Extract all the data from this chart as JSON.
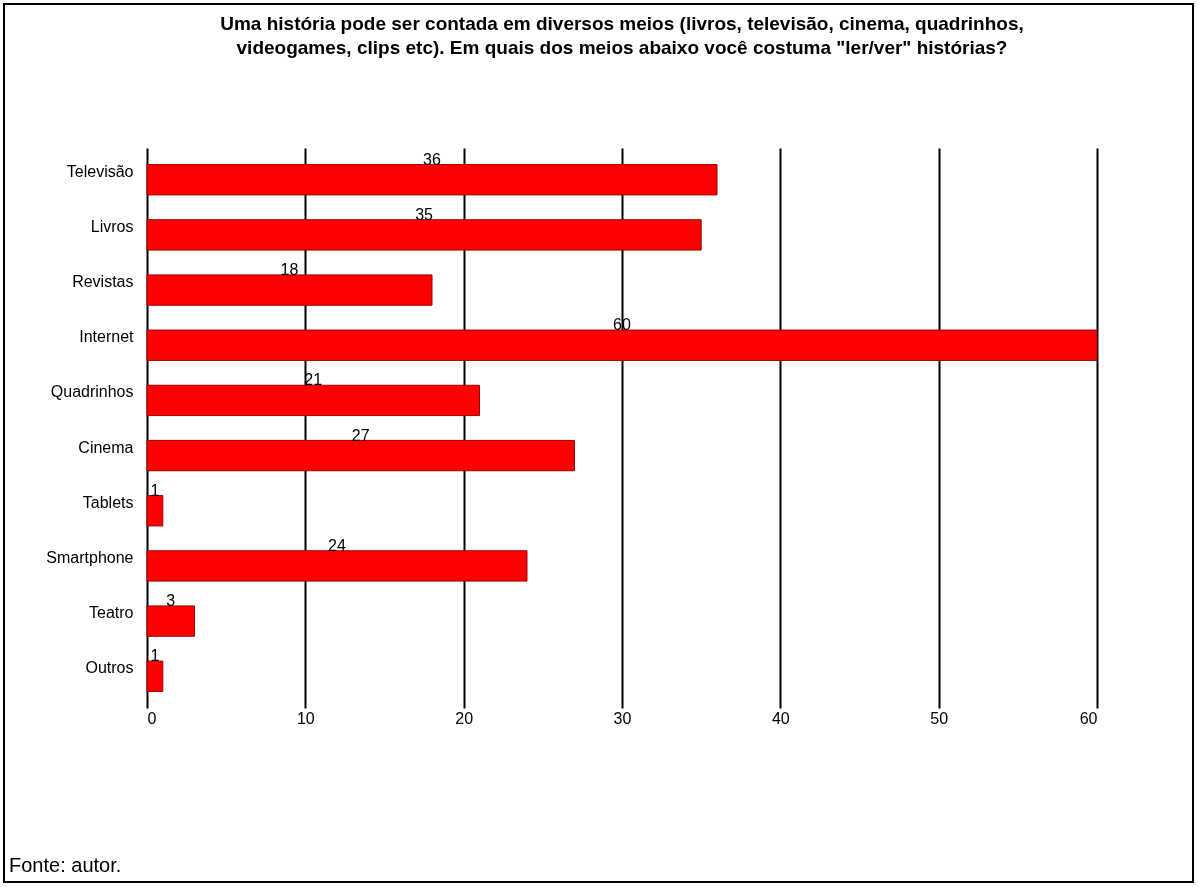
{
  "chart_data": {
    "type": "bar",
    "orientation": "horizontal",
    "title": "Uma história pode ser contada em diversos meios (livros, televisão, cinema, quadrinhos, videogames, clips etc). Em quais dos meios abaixo você costuma \"ler/ver\" histórias?",
    "categories": [
      "Televisão",
      "Livros",
      "Revistas",
      "Internet",
      "Quadrinhos",
      "Cinema",
      "Tablets",
      "Smartphone",
      "Teatro",
      "Outros"
    ],
    "values": [
      36,
      35,
      18,
      60,
      21,
      27,
      1,
      24,
      3,
      1
    ],
    "color": "#ff0000",
    "xlim": [
      0,
      60
    ],
    "xticks": [
      0,
      10,
      20,
      30,
      40,
      50,
      60
    ],
    "grid": "x",
    "data_labels": true,
    "annotations": [
      "Fonte: autor."
    ]
  }
}
